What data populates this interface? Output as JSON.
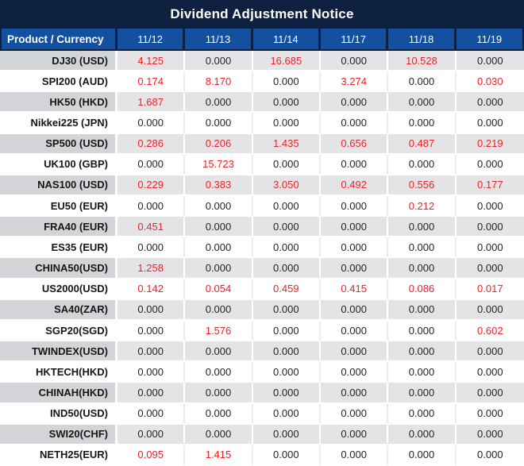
{
  "title": "Dividend Adjustment Notice",
  "colors": {
    "title_bg": "#0d203f",
    "header_bg": "#1450a0",
    "value_red": "#ee2228",
    "stripe_product_bg": "#d2d4d7",
    "stripe_value_bg": "#e4e4e6"
  },
  "table": {
    "product_header": "Product / Currency",
    "date_headers": [
      "11/12",
      "11/13",
      "11/14",
      "11/17",
      "11/18",
      "11/19"
    ],
    "zero_value": "0.000",
    "rows": [
      {
        "product": "DJ30 (USD)",
        "values": [
          "4.125",
          "0.000",
          "16.685",
          "0.000",
          "10.528",
          "0.000"
        ]
      },
      {
        "product": "SPI200 (AUD)",
        "values": [
          "0.174",
          "8.170",
          "0.000",
          "3.274",
          "0.000",
          "0.030"
        ]
      },
      {
        "product": "HK50 (HKD)",
        "values": [
          "1.687",
          "0.000",
          "0.000",
          "0.000",
          "0.000",
          "0.000"
        ]
      },
      {
        "product": "Nikkei225 (JPN)",
        "values": [
          "0.000",
          "0.000",
          "0.000",
          "0.000",
          "0.000",
          "0.000"
        ]
      },
      {
        "product": "SP500 (USD)",
        "values": [
          "0.286",
          "0.206",
          "1.435",
          "0.656",
          "0.487",
          "0.219"
        ]
      },
      {
        "product": "UK100 (GBP)",
        "values": [
          "0.000",
          "15.723",
          "0.000",
          "0.000",
          "0.000",
          "0.000"
        ]
      },
      {
        "product": "NAS100 (USD)",
        "values": [
          "0.229",
          "0.383",
          "3.050",
          "0.492",
          "0.556",
          "0.177"
        ]
      },
      {
        "product": "EU50 (EUR)",
        "values": [
          "0.000",
          "0.000",
          "0.000",
          "0.000",
          "0.212",
          "0.000"
        ]
      },
      {
        "product": "FRA40 (EUR)",
        "values": [
          "0.451",
          "0.000",
          "0.000",
          "0.000",
          "0.000",
          "0.000"
        ]
      },
      {
        "product": "ES35 (EUR)",
        "values": [
          "0.000",
          "0.000",
          "0.000",
          "0.000",
          "0.000",
          "0.000"
        ]
      },
      {
        "product": "CHINA50(USD)",
        "values": [
          "1.258",
          "0.000",
          "0.000",
          "0.000",
          "0.000",
          "0.000"
        ]
      },
      {
        "product": "US2000(USD)",
        "values": [
          "0.142",
          "0.054",
          "0.459",
          "0.415",
          "0.086",
          "0.017"
        ]
      },
      {
        "product": "SA40(ZAR)",
        "values": [
          "0.000",
          "0.000",
          "0.000",
          "0.000",
          "0.000",
          "0.000"
        ]
      },
      {
        "product": "SGP20(SGD)",
        "values": [
          "0.000",
          "1.576",
          "0.000",
          "0.000",
          "0.000",
          "0.602"
        ]
      },
      {
        "product": "TWINDEX(USD)",
        "values": [
          "0.000",
          "0.000",
          "0.000",
          "0.000",
          "0.000",
          "0.000"
        ]
      },
      {
        "product": "HKTECH(HKD)",
        "values": [
          "0.000",
          "0.000",
          "0.000",
          "0.000",
          "0.000",
          "0.000"
        ]
      },
      {
        "product": "CHINAH(HKD)",
        "values": [
          "0.000",
          "0.000",
          "0.000",
          "0.000",
          "0.000",
          "0.000"
        ]
      },
      {
        "product": "IND50(USD)",
        "values": [
          "0.000",
          "0.000",
          "0.000",
          "0.000",
          "0.000",
          "0.000"
        ]
      },
      {
        "product": "SWI20(CHF)",
        "values": [
          "0.000",
          "0.000",
          "0.000",
          "0.000",
          "0.000",
          "0.000"
        ]
      },
      {
        "product": "NETH25(EUR)",
        "values": [
          "0.095",
          "1.415",
          "0.000",
          "0.000",
          "0.000",
          "0.000"
        ]
      }
    ]
  }
}
